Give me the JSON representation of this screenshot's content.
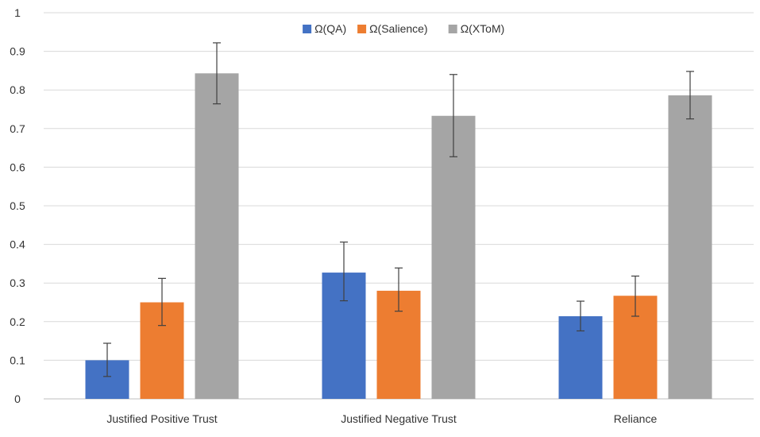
{
  "chart_data": {
    "type": "bar",
    "title": "",
    "xlabel": "",
    "ylabel": "",
    "ylim": [
      0,
      1
    ],
    "yticks": [
      0,
      0.1,
      0.2,
      0.3,
      0.4,
      0.5,
      0.6,
      0.7,
      0.8,
      0.9,
      1
    ],
    "ytick_labels": [
      "0",
      "0.1",
      "0.2",
      "0.3",
      "0.4",
      "0.5",
      "0.6",
      "0.7",
      "0.8",
      "0.9",
      "1"
    ],
    "grid": true,
    "legend_position": "top-center",
    "categories": [
      "Justified Positive Trust",
      "Justified Negative Trust",
      "Reliance"
    ],
    "series": [
      {
        "name": "Ω(QA)",
        "color": "#4472c4",
        "values": [
          0.1,
          0.327,
          0.214
        ],
        "err_low": [
          0.058,
          0.254,
          0.176
        ],
        "err_high": [
          0.144,
          0.406,
          0.253
        ]
      },
      {
        "name": "Ω(Salience)",
        "color": "#ed7d31",
        "values": [
          0.25,
          0.28,
          0.267
        ],
        "err_low": [
          0.19,
          0.227,
          0.214
        ],
        "err_high": [
          0.312,
          0.339,
          0.318
        ]
      },
      {
        "name": "Ω(XToM)",
        "color": "#a5a5a5",
        "values": [
          0.843,
          0.733,
          0.786
        ],
        "err_low": [
          0.764,
          0.627,
          0.725
        ],
        "err_high": [
          0.922,
          0.84,
          0.848
        ]
      }
    ]
  }
}
